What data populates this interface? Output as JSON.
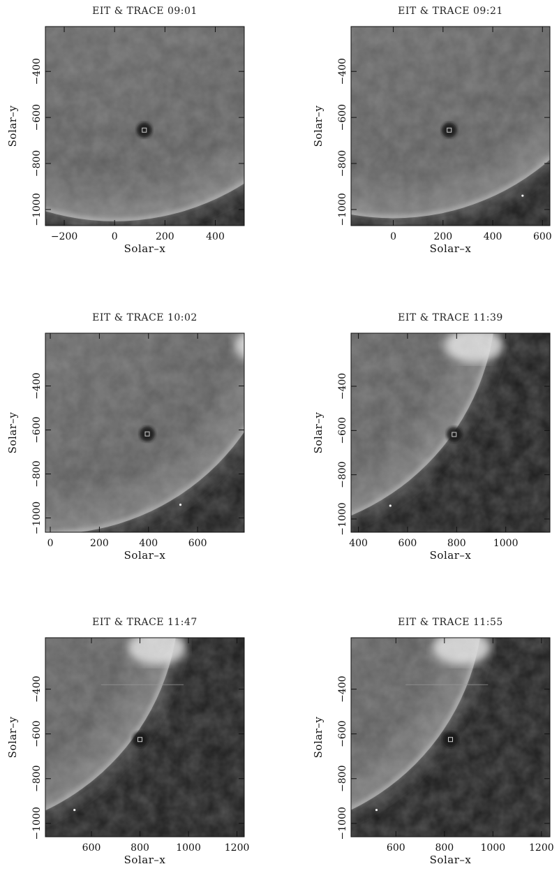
{
  "figure": {
    "panels": [
      {
        "title": "EIT & TRACE 09:01",
        "xlabel": "Solar–x",
        "ylabel": "Solar–y",
        "xlim": [
          -275,
          515
        ],
        "ylim": [
          -1070,
          -205
        ],
        "xticks": [
          -200,
          0,
          200,
          400
        ],
        "yticks": [
          -400,
          -600,
          -800,
          -1000
        ],
        "limb": {
          "cx": 0,
          "cy": 0,
          "r": 960
        },
        "feature": {
          "x": 118,
          "y": -655,
          "r": 16
        },
        "sparks": [],
        "bright_arc": false,
        "streak": false
      },
      {
        "title": "EIT & TRACE 09:21",
        "xlabel": "Solar–x",
        "ylabel": "Solar–y",
        "xlim": [
          -170,
          630
        ],
        "ylim": [
          -1070,
          -205
        ],
        "xticks": [
          0,
          200,
          400,
          600
        ],
        "yticks": [
          -400,
          -600,
          -800,
          -1000
        ],
        "limb": {
          "cx": 0,
          "cy": 0,
          "r": 960
        },
        "feature": {
          "x": 225,
          "y": -655,
          "r": 16
        },
        "sparks": [
          {
            "x": 520,
            "y": -940
          }
        ],
        "bright_arc": false,
        "streak": false
      },
      {
        "title": "EIT & TRACE 10:02",
        "xlabel": "Solar–x",
        "ylabel": "Solar–y",
        "xlim": [
          -20,
          790
        ],
        "ylim": [
          -1065,
          -160
        ],
        "xticks": [
          0,
          200,
          400,
          600
        ],
        "yticks": [
          -400,
          -600,
          -800,
          -1000
        ],
        "limb": {
          "cx": 0,
          "cy": 0,
          "r": 960
        },
        "feature": {
          "x": 395,
          "y": -618,
          "r": 16
        },
        "sparks": [
          {
            "x": 530,
            "y": -940
          }
        ],
        "bright_arc": true,
        "streak": false
      },
      {
        "title": "EIT & TRACE 11:39",
        "xlabel": "Solar–x",
        "ylabel": "Solar–y",
        "xlim": [
          370,
          1180
        ],
        "ylim": [
          -1060,
          -160
        ],
        "xticks": [
          400,
          600,
          800,
          1000
        ],
        "yticks": [
          -400,
          -600,
          -800,
          -1000
        ],
        "limb": {
          "cx": 0,
          "cy": 0,
          "r": 960
        },
        "feature": {
          "x": 790,
          "y": -618,
          "r": 16
        },
        "sparks": [
          {
            "x": 530,
            "y": -940
          }
        ],
        "bright_arc": true,
        "streak": false
      },
      {
        "title": "EIT & TRACE 11:47",
        "xlabel": "Solar–x",
        "ylabel": "Solar–y",
        "xlim": [
          410,
          1230
        ],
        "ylim": [
          -1060,
          -170
        ],
        "xticks": [
          600,
          800,
          1000,
          1200
        ],
        "yticks": [
          -400,
          -600,
          -800,
          -1000
        ],
        "limb": {
          "cx": 0,
          "cy": 0,
          "r": 960
        },
        "feature": {
          "x": 800,
          "y": -625,
          "r": 16
        },
        "sparks": [
          {
            "x": 530,
            "y": -940
          }
        ],
        "bright_arc": true,
        "streak": true
      },
      {
        "title": "EIT & TRACE 11:55",
        "xlabel": "Solar–x",
        "ylabel": "Solar–y",
        "xlim": [
          415,
          1235
        ],
        "ylim": [
          -1060,
          -170
        ],
        "xticks": [
          600,
          800,
          1000,
          1200
        ],
        "yticks": [
          -400,
          -600,
          -800,
          -1000
        ],
        "limb": {
          "cx": 0,
          "cy": 0,
          "r": 960
        },
        "feature": {
          "x": 825,
          "y": -625,
          "r": 16
        },
        "sparks": [
          {
            "x": 520,
            "y": -940
          }
        ],
        "bright_arc": true,
        "streak": true
      }
    ]
  }
}
